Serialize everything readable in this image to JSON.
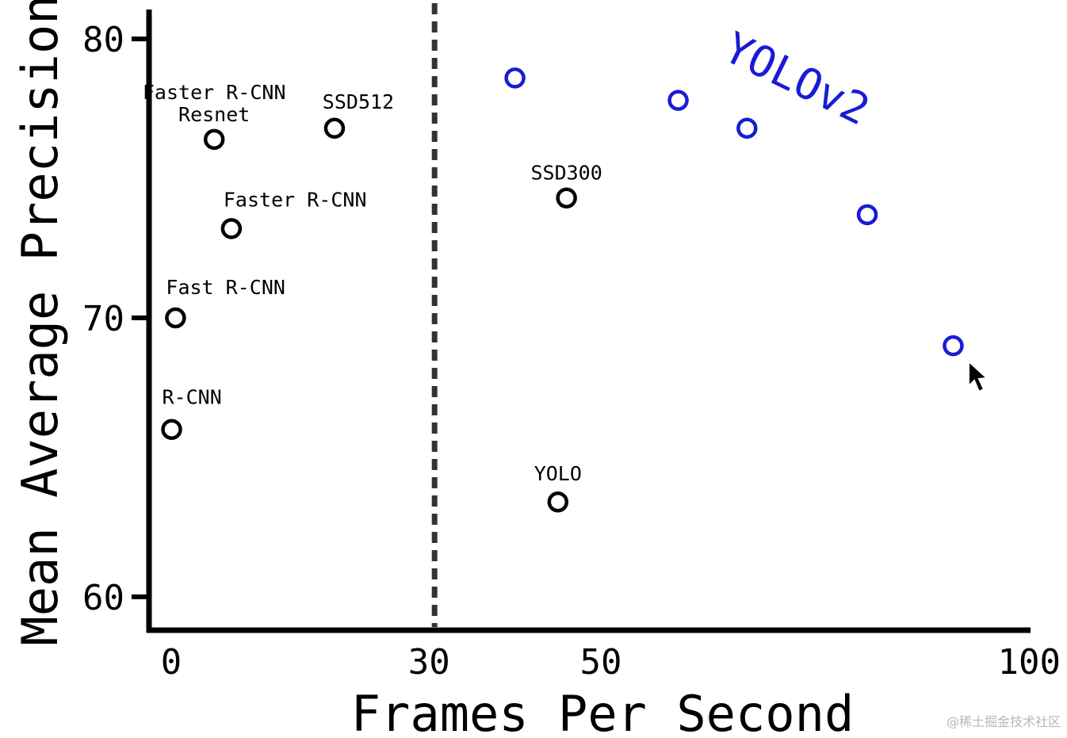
{
  "chart_data": {
    "type": "scatter",
    "xlabel": "Frames Per Second",
    "ylabel": "Mean Average Precision",
    "xlim": [
      0,
      100
    ],
    "ylim": [
      59,
      81
    ],
    "xticks": [
      0,
      30,
      50,
      100
    ],
    "yticks": [
      60,
      70,
      80
    ],
    "threshold": {
      "x": 30,
      "style": "dashed"
    },
    "grid": false,
    "colors": {
      "axis": "#000000",
      "points": "#000000",
      "yolov2": "#1a1ad6",
      "threshold": "#333333"
    },
    "series": [
      {
        "name": "",
        "points": [
          {
            "label": "R-CNN",
            "x": 0.05,
            "y": 66.0
          },
          {
            "label": "Fast R-CNN",
            "x": 0.5,
            "y": 70.0
          },
          {
            "label": "Faster R-CNN",
            "x": 7,
            "y": 73.2
          },
          {
            "label": "Faster R-CNN Resnet",
            "x": 5,
            "y": 76.4
          },
          {
            "label": "SSD512",
            "x": 19,
            "y": 76.8
          },
          {
            "label": "SSD300",
            "x": 46,
            "y": 74.3
          },
          {
            "label": "YOLO",
            "x": 45,
            "y": 63.4
          }
        ]
      },
      {
        "name": "YOLOv2",
        "points": [
          {
            "x": 40,
            "y": 78.6
          },
          {
            "x": 59,
            "y": 77.8
          },
          {
            "x": 67,
            "y": 76.8
          },
          {
            "x": 81,
            "y": 73.7
          },
          {
            "x": 91,
            "y": 69.0
          }
        ]
      }
    ]
  }
}
